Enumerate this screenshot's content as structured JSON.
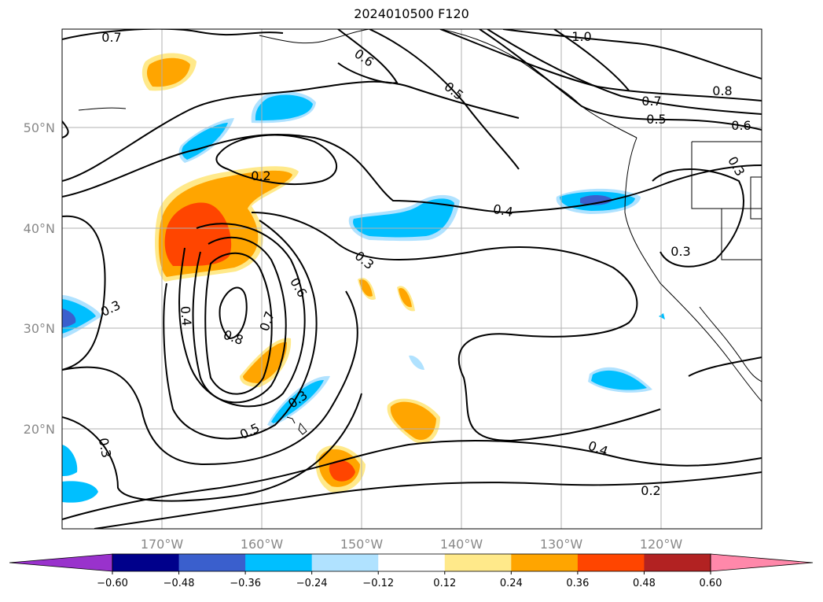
{
  "title": "2024010500 F120",
  "lat_labels": [
    "50°N",
    "40°N",
    "30°N",
    "20°N"
  ],
  "lon_labels": [
    "170°W",
    "160°W",
    "150°W",
    "140°W",
    "130°W",
    "120°W"
  ],
  "contour_labels": [
    "0.7",
    "0.6",
    "0.5",
    "1.0",
    "0.8",
    "0.7",
    "0.5",
    "0.6",
    "0.3",
    "0.2",
    "0.4",
    "0.3",
    "0.3",
    "0.6",
    "0.4",
    "0.7",
    "0.8",
    "0.3",
    "0.5",
    "0.3",
    "0.4",
    "0.2",
    "0.3"
  ],
  "colorbar": {
    "tick_labels": [
      "−0.60",
      "−0.48",
      "−0.36",
      "−0.24",
      "−0.12",
      "0.12",
      "0.24",
      "0.36",
      "0.48",
      "0.60"
    ],
    "colors": [
      "#9932CC",
      "#00008B",
      "#3A5FCD",
      "#00BFFF",
      "#B0E2FF",
      "#FFFFFF",
      "#FFE98A",
      "#FFA500",
      "#FF4500",
      "#B22222",
      "#FF88AA"
    ]
  },
  "colors": {
    "land_outline": "#000000",
    "gridline": "#b0b0b0",
    "contour": "#000000"
  }
}
